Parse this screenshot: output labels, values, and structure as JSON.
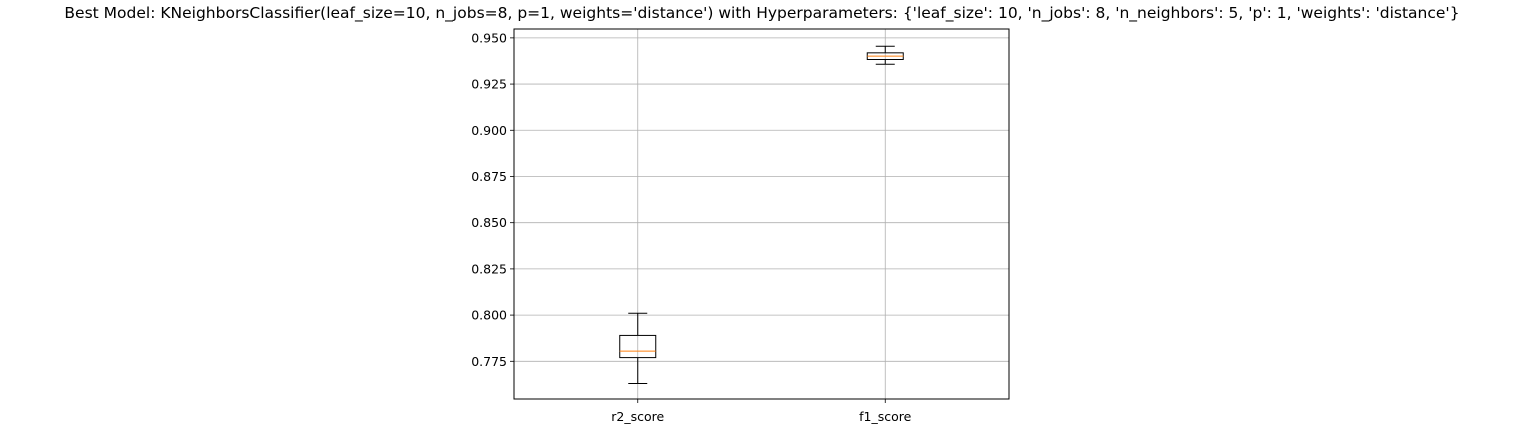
{
  "chart_data": {
    "type": "boxplot",
    "title": "Best Model: KNeighborsClassifier(leaf_size=10, n_jobs=8, p=1, weights='distance') with Hyperparameters: {'leaf_size': 10, 'n_jobs': 8, 'n_neighbors': 5, 'p': 1, 'weights': 'distance'}",
    "xlabel": "",
    "ylabel": "",
    "ylim": [
      0.7546,
      0.9548
    ],
    "yticks": [
      0.775,
      0.8,
      0.825,
      0.85,
      0.875,
      0.9,
      0.925,
      0.95
    ],
    "ytick_labels": [
      "0.775",
      "0.800",
      "0.825",
      "0.850",
      "0.875",
      "0.900",
      "0.925",
      "0.950"
    ],
    "grid": true,
    "categories": [
      "r2_score",
      "f1_score"
    ],
    "boxes": [
      {
        "name": "r2_score",
        "whisker_low": 0.763,
        "q1": 0.777,
        "median": 0.7805,
        "q3": 0.789,
        "whisker_high": 0.801
      },
      {
        "name": "f1_score",
        "whisker_low": 0.9357,
        "q1": 0.9383,
        "median": 0.9401,
        "q3": 0.9419,
        "whisker_high": 0.9455
      }
    ],
    "colors": {
      "box": "#000000",
      "median": "#ff7f0e",
      "grid": "#b0b0b0",
      "spine": "#000000"
    }
  }
}
